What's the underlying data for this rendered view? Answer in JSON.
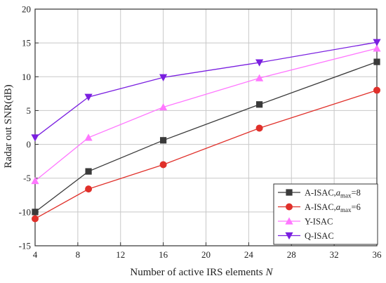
{
  "chart_data": {
    "type": "line",
    "title": "",
    "xlabel": "Number of active IRS elements",
    "xlabel_var": "N",
    "ylabel": "Radar out SNR(dB)",
    "xlim": [
      4,
      36
    ],
    "ylim": [
      -15,
      20
    ],
    "xticks": [
      4,
      8,
      12,
      16,
      20,
      24,
      28,
      32,
      36
    ],
    "yticks": [
      -15,
      -10,
      -5,
      0,
      5,
      10,
      15,
      20
    ],
    "grid": true,
    "legend_position": "bottom-right",
    "x": [
      4,
      9,
      16,
      25,
      36
    ],
    "series": [
      {
        "name": "A-ISAC,",
        "name_math": "a",
        "name_sub": "max",
        "name_suffix": "=8",
        "color": "#3a3a3a",
        "marker": "square",
        "values": [
          -10.0,
          -4.0,
          0.6,
          5.9,
          12.2
        ]
      },
      {
        "name": "A-ISAC,",
        "name_math": "a",
        "name_sub": "max",
        "name_suffix": "=6",
        "color": "#e0302a",
        "marker": "circle",
        "values": [
          -11.0,
          -6.6,
          -3.0,
          2.4,
          8.0
        ]
      },
      {
        "name": "Y-ISAC",
        "color": "#ff77ff",
        "marker": "triangle-up",
        "values": [
          -5.4,
          1.0,
          5.5,
          9.8,
          14.2
        ]
      },
      {
        "name": "Q-ISAC",
        "color": "#7a1fe0",
        "marker": "triangle-down",
        "values": [
          1.0,
          7.0,
          9.9,
          12.1,
          15.1
        ]
      }
    ]
  }
}
